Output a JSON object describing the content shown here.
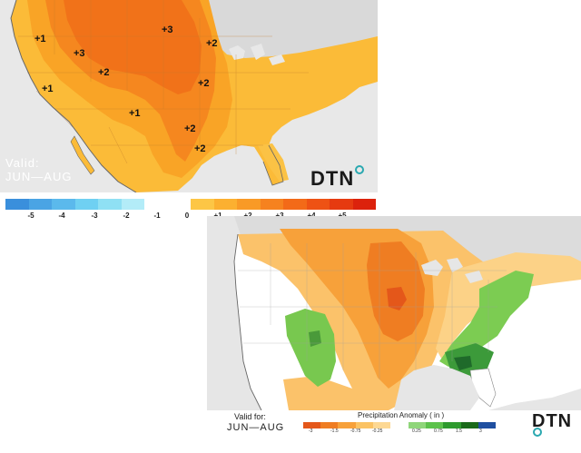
{
  "temperature_map": {
    "anomaly_labels": [
      "+1",
      "+3",
      "+3",
      "+2",
      "+2",
      "+1",
      "+2",
      "+1",
      "+2",
      "+2"
    ],
    "valid_line1": "Valid:",
    "valid_line2": "JUN—AUG",
    "logo": "DTN",
    "legend": {
      "ticks": [
        "-5",
        "-4",
        "-3",
        "-2",
        "-1",
        "0",
        "+1",
        "+2",
        "+3",
        "+4",
        "+5"
      ],
      "colors": [
        "#3a8fdc",
        "#4aa4e4",
        "#5bb9ec",
        "#6fd0f2",
        "#8fe0f4",
        "#b3ecf8",
        "#ffffff",
        "#ffffff",
        "#fdc645",
        "#fcb030",
        "#f99a26",
        "#f6821f",
        "#f36a18",
        "#ee5214",
        "#e63a10",
        "#dc220c"
      ]
    }
  },
  "precip_map": {
    "valid_line1": "Valid for:",
    "valid_line2": "JUN—AUG",
    "legend_title": "Precipitation Anomaly ( in )",
    "dry_ticks": [
      "-3",
      "-1.5",
      "-0.75",
      "-0.25"
    ],
    "wet_ticks": [
      "0.25",
      "0.75",
      "1.5",
      "3"
    ],
    "dry_colors": [
      "#e4571a",
      "#ef7d22",
      "#f7a13a",
      "#fbc364",
      "#fdd893"
    ],
    "wet_colors": [
      "#8fd67a",
      "#5cc24b",
      "#2e9a2e",
      "#1a6a1a",
      "#1f4fa0"
    ],
    "logo": "DTN"
  }
}
